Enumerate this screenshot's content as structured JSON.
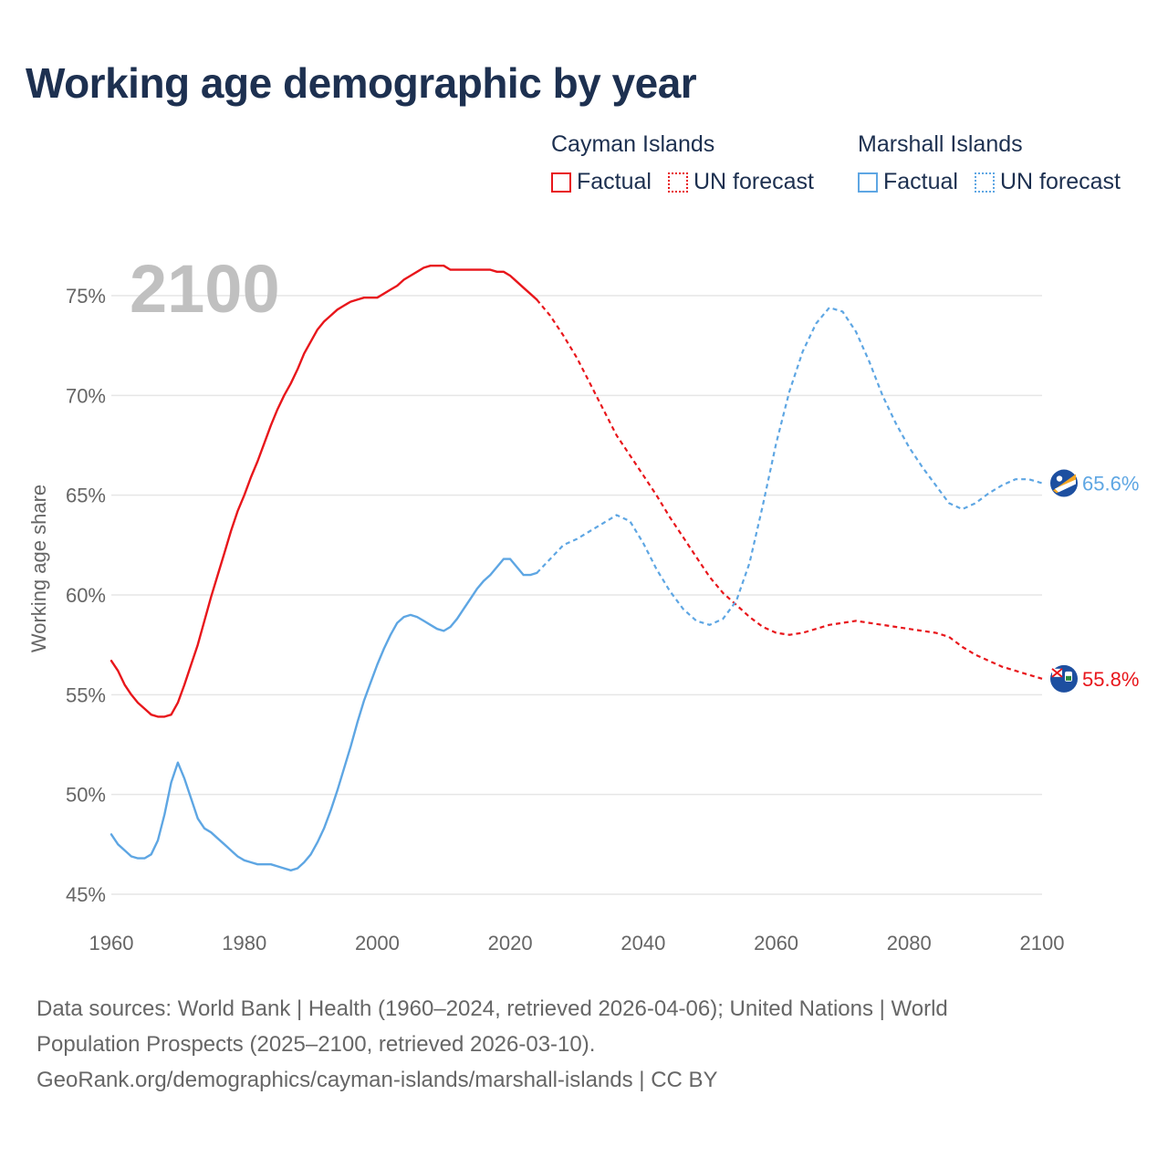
{
  "title": "Working age demographic by year",
  "year_watermark": "2100",
  "legend": {
    "groups": [
      {
        "name": "Cayman Islands",
        "factual": "Factual",
        "forecast": "UN forecast",
        "color": "#e8161b"
      },
      {
        "name": "Marshall Islands",
        "factual": "Factual",
        "forecast": "UN forecast",
        "color": "#5ea6e3"
      }
    ]
  },
  "footer": {
    "line1": "Data sources: World Bank | Health (1960–2024, retrieved 2026-04-06); United Nations | World Population Prospects (2025–2100, retrieved 2026-03-10).",
    "line2": "GeoRank.org/demographics/cayman-islands/marshall-islands | CC BY"
  },
  "chart_data": {
    "type": "line",
    "title": "Working age demographic by year",
    "xlabel": "",
    "ylabel": "Working age share",
    "xlim": [
      1960,
      2100
    ],
    "ylim": [
      45,
      76.5
    ],
    "x_ticks": [
      1960,
      1980,
      2000,
      2020,
      2040,
      2060,
      2080,
      2100
    ],
    "y_ticks": [
      45,
      50,
      55,
      60,
      65,
      70,
      75
    ],
    "y_tick_labels": [
      "45%",
      "50%",
      "55%",
      "60%",
      "65%",
      "70%",
      "75%"
    ],
    "forecast_start": 2024,
    "series": [
      {
        "name": "Cayman Islands",
        "color": "#e8161b",
        "end_label": "55.8%",
        "points": [
          [
            1960,
            56.7
          ],
          [
            1961,
            56.2
          ],
          [
            1962,
            55.5
          ],
          [
            1963,
            55.0
          ],
          [
            1964,
            54.6
          ],
          [
            1965,
            54.3
          ],
          [
            1966,
            54.0
          ],
          [
            1967,
            53.9
          ],
          [
            1968,
            53.9
          ],
          [
            1969,
            54.0
          ],
          [
            1970,
            54.6
          ],
          [
            1971,
            55.5
          ],
          [
            1972,
            56.5
          ],
          [
            1973,
            57.5
          ],
          [
            1974,
            58.7
          ],
          [
            1975,
            59.9
          ],
          [
            1976,
            61.0
          ],
          [
            1977,
            62.1
          ],
          [
            1978,
            63.2
          ],
          [
            1979,
            64.2
          ],
          [
            1980,
            65.0
          ],
          [
            1981,
            65.9
          ],
          [
            1982,
            66.7
          ],
          [
            1983,
            67.6
          ],
          [
            1984,
            68.5
          ],
          [
            1985,
            69.3
          ],
          [
            1986,
            70.0
          ],
          [
            1987,
            70.6
          ],
          [
            1988,
            71.3
          ],
          [
            1989,
            72.1
          ],
          [
            1990,
            72.7
          ],
          [
            1991,
            73.3
          ],
          [
            1992,
            73.7
          ],
          [
            1993,
            74.0
          ],
          [
            1994,
            74.3
          ],
          [
            1995,
            74.5
          ],
          [
            1996,
            74.7
          ],
          [
            1997,
            74.8
          ],
          [
            1998,
            74.9
          ],
          [
            1999,
            74.9
          ],
          [
            2000,
            74.9
          ],
          [
            2001,
            75.1
          ],
          [
            2002,
            75.3
          ],
          [
            2003,
            75.5
          ],
          [
            2004,
            75.8
          ],
          [
            2005,
            76.0
          ],
          [
            2006,
            76.2
          ],
          [
            2007,
            76.4
          ],
          [
            2008,
            76.5
          ],
          [
            2009,
            76.5
          ],
          [
            2010,
            76.5
          ],
          [
            2011,
            76.3
          ],
          [
            2012,
            76.3
          ],
          [
            2013,
            76.3
          ],
          [
            2014,
            76.3
          ],
          [
            2015,
            76.3
          ],
          [
            2016,
            76.3
          ],
          [
            2017,
            76.3
          ],
          [
            2018,
            76.2
          ],
          [
            2019,
            76.2
          ],
          [
            2020,
            76.0
          ],
          [
            2021,
            75.7
          ],
          [
            2022,
            75.4
          ],
          [
            2023,
            75.1
          ],
          [
            2024,
            74.8
          ],
          [
            2026,
            74.0
          ],
          [
            2028,
            73.0
          ],
          [
            2030,
            71.9
          ],
          [
            2032,
            70.6
          ],
          [
            2034,
            69.3
          ],
          [
            2036,
            68.0
          ],
          [
            2038,
            67.0
          ],
          [
            2040,
            66.0
          ],
          [
            2042,
            65.0
          ],
          [
            2044,
            63.9
          ],
          [
            2046,
            62.9
          ],
          [
            2048,
            61.9
          ],
          [
            2050,
            60.9
          ],
          [
            2052,
            60.1
          ],
          [
            2054,
            59.5
          ],
          [
            2056,
            58.9
          ],
          [
            2058,
            58.4
          ],
          [
            2060,
            58.1
          ],
          [
            2062,
            58.0
          ],
          [
            2064,
            58.1
          ],
          [
            2066,
            58.3
          ],
          [
            2068,
            58.5
          ],
          [
            2070,
            58.6
          ],
          [
            2072,
            58.7
          ],
          [
            2074,
            58.6
          ],
          [
            2076,
            58.5
          ],
          [
            2078,
            58.4
          ],
          [
            2080,
            58.3
          ],
          [
            2082,
            58.2
          ],
          [
            2084,
            58.1
          ],
          [
            2086,
            57.9
          ],
          [
            2088,
            57.4
          ],
          [
            2090,
            57.0
          ],
          [
            2092,
            56.7
          ],
          [
            2094,
            56.4
          ],
          [
            2096,
            56.2
          ],
          [
            2098,
            56.0
          ],
          [
            2100,
            55.8
          ]
        ]
      },
      {
        "name": "Marshall Islands",
        "color": "#5ea6e3",
        "end_label": "65.6%",
        "points": [
          [
            1960,
            48.0
          ],
          [
            1961,
            47.5
          ],
          [
            1962,
            47.2
          ],
          [
            1963,
            46.9
          ],
          [
            1964,
            46.8
          ],
          [
            1965,
            46.8
          ],
          [
            1966,
            47.0
          ],
          [
            1967,
            47.7
          ],
          [
            1968,
            49.0
          ],
          [
            1969,
            50.6
          ],
          [
            1970,
            51.6
          ],
          [
            1971,
            50.8
          ],
          [
            1972,
            49.8
          ],
          [
            1973,
            48.8
          ],
          [
            1974,
            48.3
          ],
          [
            1975,
            48.1
          ],
          [
            1976,
            47.8
          ],
          [
            1977,
            47.5
          ],
          [
            1978,
            47.2
          ],
          [
            1979,
            46.9
          ],
          [
            1980,
            46.7
          ],
          [
            1981,
            46.6
          ],
          [
            1982,
            46.5
          ],
          [
            1983,
            46.5
          ],
          [
            1984,
            46.5
          ],
          [
            1985,
            46.4
          ],
          [
            1986,
            46.3
          ],
          [
            1987,
            46.2
          ],
          [
            1988,
            46.3
          ],
          [
            1989,
            46.6
          ],
          [
            1990,
            47.0
          ],
          [
            1991,
            47.6
          ],
          [
            1992,
            48.3
          ],
          [
            1993,
            49.2
          ],
          [
            1994,
            50.2
          ],
          [
            1995,
            51.3
          ],
          [
            1996,
            52.4
          ],
          [
            1997,
            53.6
          ],
          [
            1998,
            54.7
          ],
          [
            1999,
            55.6
          ],
          [
            2000,
            56.5
          ],
          [
            2001,
            57.3
          ],
          [
            2002,
            58.0
          ],
          [
            2003,
            58.6
          ],
          [
            2004,
            58.9
          ],
          [
            2005,
            59.0
          ],
          [
            2006,
            58.9
          ],
          [
            2007,
            58.7
          ],
          [
            2008,
            58.5
          ],
          [
            2009,
            58.3
          ],
          [
            2010,
            58.2
          ],
          [
            2011,
            58.4
          ],
          [
            2012,
            58.8
          ],
          [
            2013,
            59.3
          ],
          [
            2014,
            59.8
          ],
          [
            2015,
            60.3
          ],
          [
            2016,
            60.7
          ],
          [
            2017,
            61.0
          ],
          [
            2018,
            61.4
          ],
          [
            2019,
            61.8
          ],
          [
            2020,
            61.8
          ],
          [
            2021,
            61.4
          ],
          [
            2022,
            61.0
          ],
          [
            2023,
            61.0
          ],
          [
            2024,
            61.1
          ],
          [
            2026,
            61.8
          ],
          [
            2028,
            62.5
          ],
          [
            2030,
            62.8
          ],
          [
            2032,
            63.2
          ],
          [
            2034,
            63.6
          ],
          [
            2036,
            64.0
          ],
          [
            2038,
            63.7
          ],
          [
            2040,
            62.6
          ],
          [
            2042,
            61.3
          ],
          [
            2044,
            60.2
          ],
          [
            2046,
            59.3
          ],
          [
            2048,
            58.7
          ],
          [
            2050,
            58.5
          ],
          [
            2052,
            58.8
          ],
          [
            2054,
            59.7
          ],
          [
            2056,
            61.6
          ],
          [
            2058,
            64.5
          ],
          [
            2060,
            67.6
          ],
          [
            2062,
            70.2
          ],
          [
            2064,
            72.2
          ],
          [
            2066,
            73.6
          ],
          [
            2068,
            74.4
          ],
          [
            2070,
            74.2
          ],
          [
            2072,
            73.2
          ],
          [
            2074,
            71.7
          ],
          [
            2076,
            70.0
          ],
          [
            2078,
            68.6
          ],
          [
            2080,
            67.4
          ],
          [
            2082,
            66.4
          ],
          [
            2084,
            65.5
          ],
          [
            2086,
            64.6
          ],
          [
            2088,
            64.3
          ],
          [
            2090,
            64.6
          ],
          [
            2092,
            65.1
          ],
          [
            2094,
            65.5
          ],
          [
            2096,
            65.8
          ],
          [
            2098,
            65.8
          ],
          [
            2100,
            65.6
          ]
        ]
      }
    ]
  }
}
